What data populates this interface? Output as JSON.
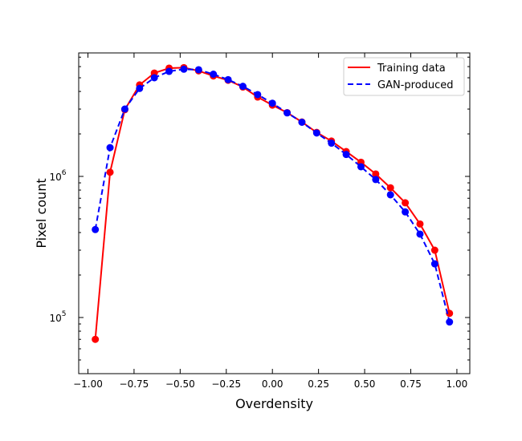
{
  "chart_data": {
    "type": "line",
    "title": "",
    "xlabel": "Overdensity",
    "ylabel": "Pixel count",
    "xlim": [
      -1.05,
      1.07
    ],
    "ylim": [
      40000,
      7500000
    ],
    "yscale": "log",
    "x_ticks": [
      -1.0,
      -0.75,
      -0.5,
      -0.25,
      0.0,
      0.25,
      0.5,
      0.75,
      1.0
    ],
    "x_tick_labels": [
      "−1.00",
      "−0.75",
      "−0.50",
      "−0.25",
      "0.00",
      "0.25",
      "0.50",
      "0.75",
      "1.00"
    ],
    "y_major_ticks": [
      100000,
      1000000
    ],
    "y_tick_labels": [
      {
        "base": "10",
        "exp": "5"
      },
      {
        "base": "10",
        "exp": "6"
      }
    ],
    "legend_position": "top-right",
    "series": [
      {
        "name": "Training data",
        "color": "#ff0000",
        "linestyle": "solid",
        "x": [
          -0.96,
          -0.88,
          -0.8,
          -0.72,
          -0.64,
          -0.56,
          -0.48,
          -0.4,
          -0.32,
          -0.24,
          -0.16,
          -0.08,
          0.0,
          0.08,
          0.16,
          0.24,
          0.32,
          0.4,
          0.48,
          0.56,
          0.64,
          0.72,
          0.8,
          0.88,
          0.96
        ],
        "values": [
          70000,
          1070000,
          2970000,
          4450000,
          5400000,
          5850000,
          5900000,
          5600000,
          5150000,
          4800000,
          4300000,
          3650000,
          3200000,
          2830000,
          2430000,
          2050000,
          1780000,
          1500000,
          1260000,
          1040000,
          830000,
          650000,
          460000,
          300000,
          107000
        ]
      },
      {
        "name": "GAN-produced",
        "color": "#0000ff",
        "linestyle": "dashed",
        "x": [
          -0.96,
          -0.88,
          -0.8,
          -0.72,
          -0.64,
          -0.56,
          -0.48,
          -0.4,
          -0.32,
          -0.24,
          -0.16,
          -0.08,
          0.0,
          0.08,
          0.16,
          0.24,
          0.32,
          0.4,
          0.48,
          0.56,
          0.64,
          0.72,
          0.8,
          0.88,
          0.96
        ],
        "values": [
          420000,
          1600000,
          3000000,
          4200000,
          5000000,
          5550000,
          5750000,
          5700000,
          5300000,
          4850000,
          4350000,
          3800000,
          3300000,
          2820000,
          2420000,
          2030000,
          1720000,
          1430000,
          1170000,
          950000,
          740000,
          560000,
          390000,
          240000,
          93000
        ]
      }
    ]
  }
}
